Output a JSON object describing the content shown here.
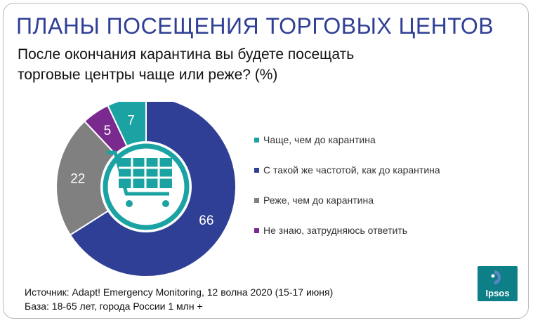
{
  "title": "ПЛАНЫ ПОСЕЩЕНИЯ ТОРГОВЫХ ЦЕНТОВ",
  "subtitle": "После окончания карантина вы будете посещать торговые центры чаще или реже? (%)",
  "chart_data": {
    "type": "pie",
    "donut": true,
    "center_icon": "shopping-cart-icon",
    "categories": [
      "С такой же частотой, как до карантина",
      "Реже, чем до карантина",
      "Не знаю, затрудняюсь ответить",
      "Чаще, чем до карантина"
    ],
    "values": [
      66,
      22,
      5,
      7
    ],
    "colors": [
      "#2f3f95",
      "#808080",
      "#7a2a8f",
      "#1ba3a3"
    ],
    "legend_order": [
      3,
      0,
      1,
      2
    ],
    "legend_position": "right"
  },
  "source": {
    "line1": "Источник: Adapt! Emergency Monitoring, 12 волна 2020 (15-17 июня)",
    "line2": "База: 18-65 лет, города России 1 млн +"
  },
  "logo": {
    "text": "Ipsos",
    "color": "#0d7f86"
  }
}
